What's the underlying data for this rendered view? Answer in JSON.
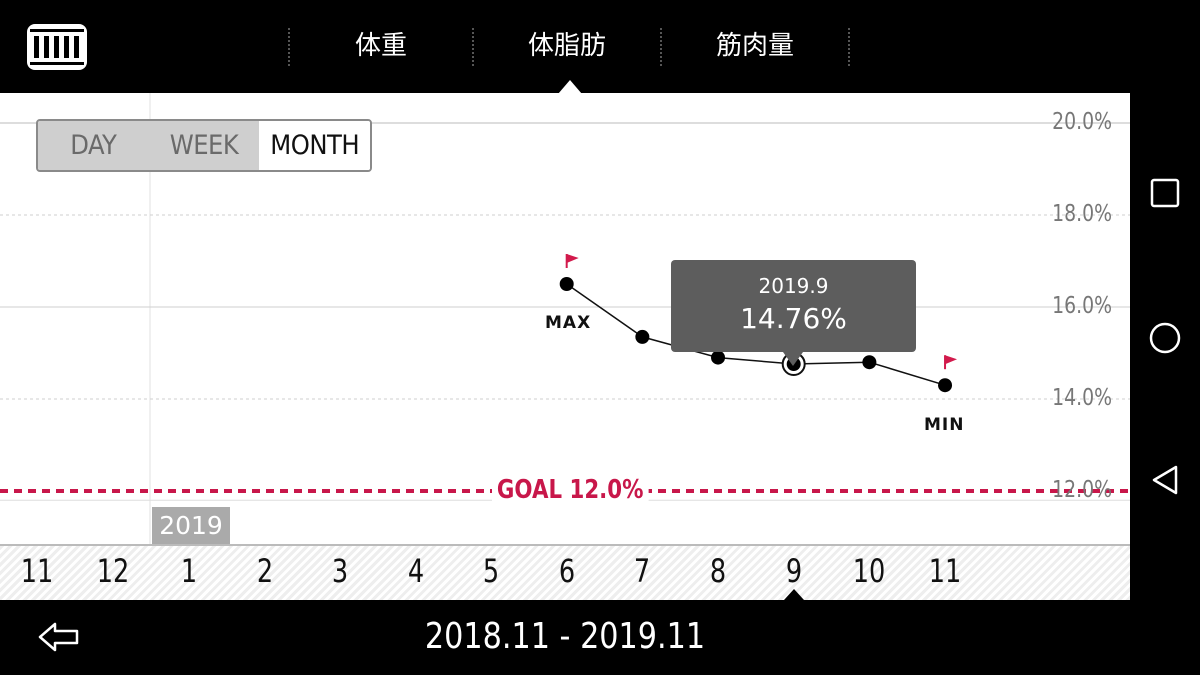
{
  "tabs": [
    {
      "label": "体重",
      "active": false
    },
    {
      "label": "体脂肪",
      "active": true
    },
    {
      "label": "筋肉量",
      "active": false
    }
  ],
  "range_toggle": [
    {
      "label": "DAY",
      "selected": false
    },
    {
      "label": "WEEK",
      "selected": false
    },
    {
      "label": "MONTH",
      "selected": true
    }
  ],
  "y_ticks": [
    "20.0%",
    "18.0%",
    "16.0%",
    "14.0%",
    "12.0%"
  ],
  "year_badge": "2019",
  "goal": {
    "label": "GOAL 12.0%",
    "value": 12.0,
    "color": "#c8174a"
  },
  "tooltip": {
    "date": "2019.9",
    "value": "14.76%"
  },
  "markers": {
    "max": "MAX",
    "min": "MIN",
    "flag_color": "#d21a4c"
  },
  "months": [
    "11",
    "12",
    "1",
    "2",
    "3",
    "4",
    "5",
    "6",
    "7",
    "8",
    "9",
    "10",
    "11"
  ],
  "date_range": "2018.11 - 2019.11",
  "icons": {
    "logo": "app-logo-icon",
    "back": "back-arrow-icon",
    "recents": "square-icon",
    "home": "circle-icon",
    "nav_back": "triangle-back-icon"
  },
  "chart_data": {
    "type": "line",
    "x": [
      "2018.11",
      "2018.12",
      "2019.1",
      "2019.2",
      "2019.3",
      "2019.4",
      "2019.5",
      "2019.6",
      "2019.7",
      "2019.8",
      "2019.9",
      "2019.10",
      "2019.11"
    ],
    "values": [
      null,
      null,
      null,
      null,
      null,
      null,
      null,
      16.5,
      15.35,
      14.9,
      14.76,
      14.8,
      14.3
    ],
    "ylim": [
      10.0,
      20.0
    ],
    "goal": 12.0,
    "selected_index": 10,
    "max_index": 7,
    "min_index": 12
  }
}
